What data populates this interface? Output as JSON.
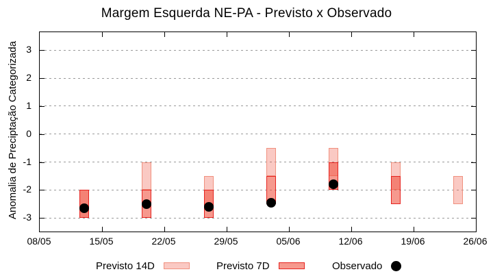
{
  "chart_data": {
    "type": "range-bar",
    "title": "Margem Esquerda NE-PA - Previsto x Observado",
    "ylabel": "Anomalia de Preciptação Categorizada",
    "x_tick_labels": [
      "08/05",
      "15/05",
      "22/05",
      "29/05",
      "05/06",
      "12/06",
      "19/06",
      "26/06"
    ],
    "x_tick_days": [
      0,
      7,
      14,
      21,
      28,
      35,
      42,
      49
    ],
    "x_span_days": 49,
    "y_ticks": [
      3,
      2,
      1,
      0,
      -1,
      -2,
      -3
    ],
    "ylim": [
      -3.5,
      3.6
    ],
    "grid": "horizontal-dashed",
    "legend_position": "bottom",
    "legend": {
      "p14_label": "Previsto 14D",
      "p7_label": "Previsto 7D",
      "obs_label": "Observado"
    },
    "colors": {
      "p14_fill": "rgba(240,80,60,0.31)",
      "p14_border": "#f0907e",
      "p7_fill": "rgba(240,80,60,0.58)",
      "p7_border": "#e6221e",
      "observado": "#000000",
      "grid": "#999999",
      "axis": "#000000"
    },
    "groups": [
      {
        "date": "13/05",
        "day": 5,
        "previsto_14d": [
          -3,
          -2
        ],
        "previsto_7d": [
          -3,
          -2
        ],
        "observado": -2.65
      },
      {
        "date": "20/05",
        "day": 12,
        "previsto_14d": [
          -2,
          -1
        ],
        "previsto_7d": [
          -3,
          -2
        ],
        "observado": -2.5
      },
      {
        "date": "27/05",
        "day": 19,
        "previsto_14d": [
          -2.5,
          -1.5
        ],
        "previsto_7d": [
          -3,
          -2
        ],
        "observado": -2.6
      },
      {
        "date": "03/06",
        "day": 26,
        "previsto_14d": [
          -1.5,
          -0.5
        ],
        "previsto_7d": [
          -2.5,
          -1.5
        ],
        "observado": -2.45
      },
      {
        "date": "10/06",
        "day": 33,
        "previsto_14d": [
          -1.5,
          -0.5
        ],
        "previsto_7d": [
          -2,
          -1
        ],
        "observado": -1.8
      },
      {
        "date": "17/06",
        "day": 40,
        "previsto_14d": [
          -2,
          -1
        ],
        "previsto_7d": [
          -2.5,
          -1.5
        ],
        "observado": null
      },
      {
        "date": "24/06",
        "day": 47,
        "previsto_14d": [
          -2.5,
          -1.5
        ],
        "previsto_7d": null,
        "observado": null
      }
    ]
  }
}
